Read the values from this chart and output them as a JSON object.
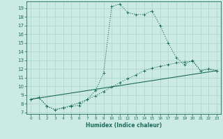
{
  "xlabel": "Humidex (Indice chaleur)",
  "background_color": "#cceae4",
  "grid_color": "#aad4cc",
  "line_color": "#1a6b5a",
  "xlim": [
    -0.5,
    23.5
  ],
  "ylim": [
    6.8,
    19.8
  ],
  "xticks": [
    0,
    1,
    2,
    3,
    4,
    5,
    6,
    7,
    8,
    9,
    10,
    11,
    12,
    13,
    14,
    15,
    16,
    17,
    18,
    19,
    20,
    21,
    22,
    23
  ],
  "yticks": [
    7,
    8,
    9,
    10,
    11,
    12,
    13,
    14,
    15,
    16,
    17,
    18,
    19
  ],
  "curve1_x": [
    0,
    1,
    2,
    3,
    4,
    5,
    6,
    7,
    8,
    9,
    10,
    11,
    12,
    13,
    14,
    15,
    16,
    17,
    18,
    19,
    20,
    21,
    22,
    23
  ],
  "curve1_y": [
    8.5,
    8.7,
    7.7,
    7.3,
    7.5,
    7.7,
    7.8,
    8.5,
    9.5,
    11.5,
    19.2,
    19.5,
    18.5,
    18.3,
    18.3,
    18.7,
    17.0,
    15.0,
    13.3,
    12.5,
    13.0,
    11.8,
    12.0,
    11.8
  ],
  "curve2_x": [
    0,
    1,
    2,
    3,
    4,
    5,
    6,
    7,
    8,
    9,
    10,
    11,
    12,
    13,
    14,
    15,
    16,
    17,
    18,
    19,
    20,
    21,
    22,
    23
  ],
  "curve2_y": [
    8.5,
    8.7,
    7.7,
    7.3,
    7.5,
    7.8,
    8.1,
    8.5,
    8.9,
    9.4,
    9.9,
    10.4,
    10.9,
    11.3,
    11.8,
    12.1,
    12.3,
    12.5,
    12.7,
    12.8,
    12.9,
    11.8,
    12.0,
    11.8
  ],
  "curve3_x": [
    0,
    23
  ],
  "curve3_y": [
    8.5,
    11.8
  ]
}
